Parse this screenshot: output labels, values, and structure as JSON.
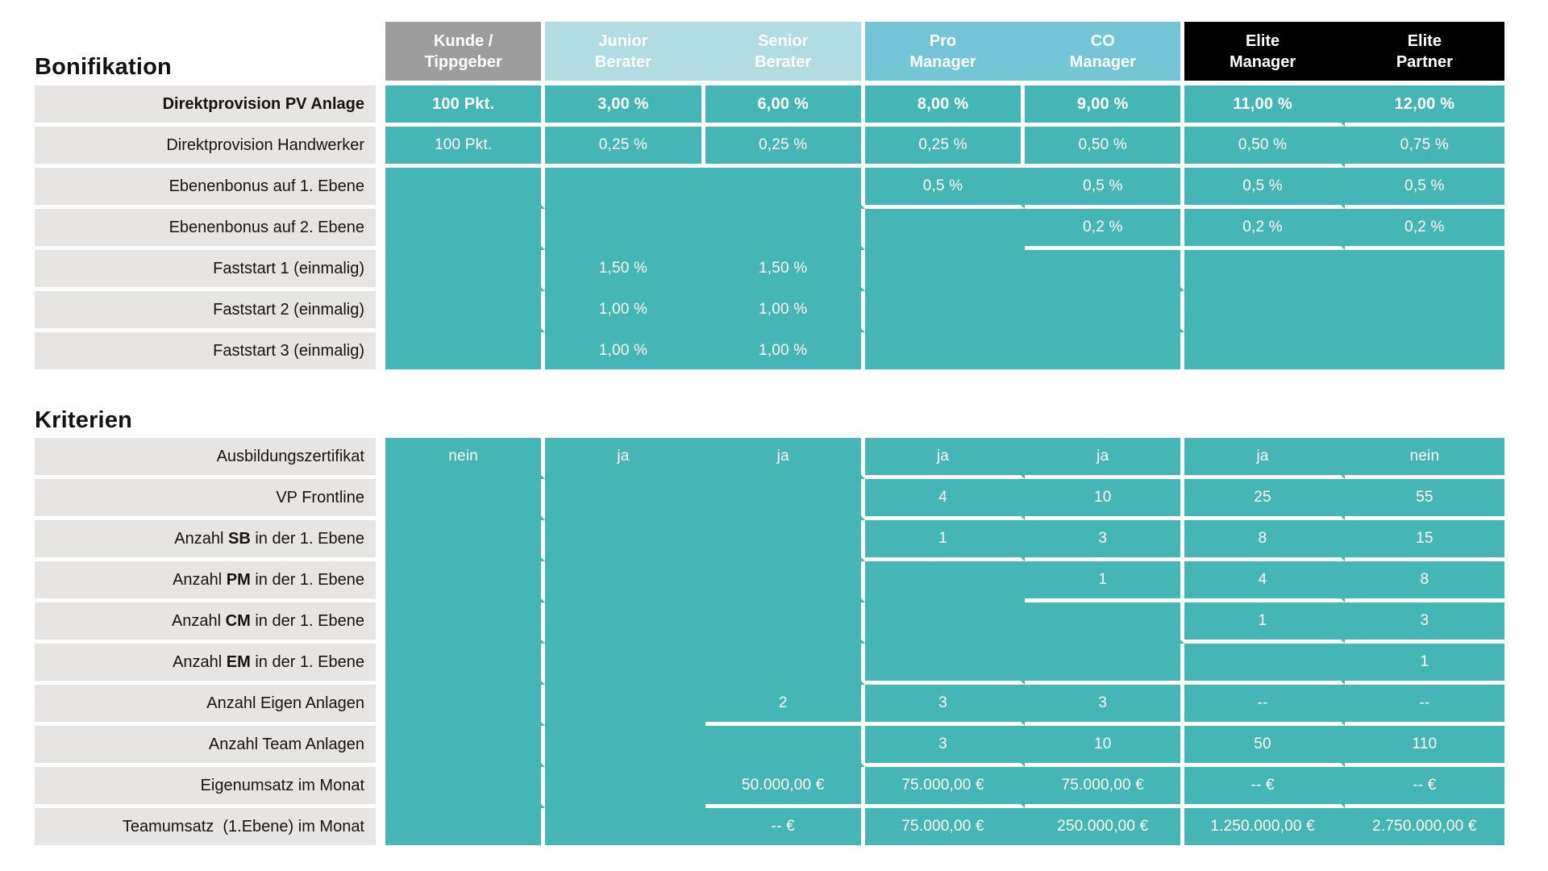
{
  "colors": {
    "teal_body": "#45b5b5",
    "header_gray": "#9d9d9d",
    "header_light_teal": "#b0dce2",
    "header_blue_teal": "#74c6d6",
    "header_black": "#000000",
    "row_label_bg": "#e6e5e3",
    "separator_white": "#ffffff",
    "value_text": "#ffffff",
    "label_text": "#141414"
  },
  "header": {
    "columns": [
      {
        "id": "kunde-tippgeber",
        "group": "gray",
        "line_right": true,
        "title_lines": [
          "Kunde /",
          "Tippgeber"
        ]
      },
      {
        "id": "junior-berater",
        "group": "light",
        "line_right": false,
        "title_lines": [
          "Junior",
          "Berater"
        ]
      },
      {
        "id": "senior-berater",
        "group": "light",
        "line_right": true,
        "title_lines": [
          "Senior",
          "Berater"
        ]
      },
      {
        "id": "pro-manager",
        "group": "medium",
        "line_right": false,
        "title_lines": [
          "Pro",
          "Manager"
        ]
      },
      {
        "id": "co-manager",
        "group": "medium",
        "line_right": true,
        "title_lines": [
          "CO",
          "Manager"
        ]
      },
      {
        "id": "elite-manager",
        "group": "dark",
        "line_right": false,
        "title_lines": [
          "Elite",
          "Manager"
        ]
      },
      {
        "id": "elite-partner",
        "group": "dark",
        "line_right": false,
        "title_lines": [
          "Elite",
          "Partner"
        ]
      }
    ]
  },
  "bonifikation": {
    "heading": "Bonifikation",
    "rows": [
      {
        "label_parts": [
          {
            "t": "Direktprovision PV Anlage",
            "b": true
          }
        ],
        "bold_values": true,
        "cells": [
          "100 Pkt.",
          "3,00 %",
          "6,00 %",
          "8,00 %",
          "9,00 %",
          "11,00 %",
          "12,00 %"
        ],
        "lines_below": [
          1,
          1,
          1,
          1,
          1,
          1,
          1
        ],
        "lines_right": [
          1,
          1,
          1,
          1,
          1,
          0,
          0
        ]
      },
      {
        "label_parts": [
          {
            "t": "Direktprovision Handwerker"
          }
        ],
        "cells": [
          "100 Pkt.",
          "0,25 %",
          "0,25 %",
          "0,25 %",
          "0,50 %",
          "0,50 %",
          "0,75 %"
        ],
        "lines_below": [
          1,
          1,
          1,
          1,
          1,
          1,
          1
        ],
        "lines_right": [
          1,
          1,
          1,
          1,
          1,
          0,
          0
        ]
      },
      {
        "label_parts": [
          {
            "t": "Ebenenbonus auf 1. Ebene"
          }
        ],
        "cells": [
          "",
          "",
          "",
          "0,5 %",
          "0,5 %",
          "0,5 %",
          "0,5 %"
        ],
        "lines_below": [
          0,
          0,
          0,
          1,
          1,
          1,
          1
        ],
        "lines_right": [
          1,
          0,
          1,
          0,
          1,
          0,
          0
        ]
      },
      {
        "label_parts": [
          {
            "t": "Ebenenbonus auf 2. Ebene"
          }
        ],
        "cells": [
          "",
          "",
          "",
          "",
          "0,2 %",
          "0,2 %",
          "0,2 %"
        ],
        "lines_below": [
          0,
          0,
          0,
          0,
          1,
          1,
          1
        ],
        "lines_right": [
          1,
          0,
          1,
          0,
          1,
          0,
          0
        ]
      },
      {
        "label_parts": [
          {
            "t": "Faststart 1 (einmalig)"
          }
        ],
        "cells": [
          "",
          "1,50 %",
          "1,50 %",
          "",
          "",
          "",
          ""
        ],
        "lines_below": [
          0,
          0,
          0,
          0,
          0,
          0,
          0
        ],
        "lines_right": [
          1,
          0,
          1,
          0,
          1,
          0,
          0
        ]
      },
      {
        "label_parts": [
          {
            "t": "Faststart 2 (einmalig)"
          }
        ],
        "cells": [
          "",
          "1,00 %",
          "1,00 %",
          "",
          "",
          "",
          ""
        ],
        "lines_below": [
          0,
          0,
          0,
          0,
          0,
          0,
          0
        ],
        "lines_right": [
          1,
          0,
          1,
          0,
          1,
          0,
          0
        ]
      },
      {
        "label_parts": [
          {
            "t": "Faststart 3 (einmalig)"
          }
        ],
        "cells": [
          "",
          "1,00 %",
          "1,00 %",
          "",
          "",
          "",
          ""
        ],
        "lines_below": [
          0,
          0,
          0,
          0,
          0,
          0,
          0
        ],
        "lines_right": [
          1,
          0,
          1,
          0,
          1,
          0,
          0
        ]
      }
    ]
  },
  "kriterien": {
    "heading": "Kriterien",
    "rows": [
      {
        "label_parts": [
          {
            "t": "Ausbildungszertifikat"
          }
        ],
        "cells": [
          "nein",
          "ja",
          "ja",
          "ja",
          "ja",
          "ja",
          "nein"
        ],
        "lines_below": [
          0,
          0,
          0,
          1,
          1,
          1,
          1
        ],
        "lines_right": [
          1,
          0,
          1,
          0,
          1,
          0,
          0
        ]
      },
      {
        "label_parts": [
          {
            "t": "VP Frontline"
          }
        ],
        "cells": [
          "",
          "",
          "",
          "4",
          "10",
          "25",
          "55"
        ],
        "lines_below": [
          0,
          0,
          0,
          1,
          1,
          1,
          1
        ],
        "lines_right": [
          1,
          0,
          1,
          0,
          1,
          0,
          0
        ]
      },
      {
        "label_parts": [
          {
            "t": "Anzahl "
          },
          {
            "t": "SB",
            "b": true
          },
          {
            "t": " in der 1. Ebene"
          }
        ],
        "cells": [
          "",
          "",
          "",
          "1",
          "3",
          "8",
          "15"
        ],
        "lines_below": [
          0,
          0,
          0,
          1,
          1,
          1,
          1
        ],
        "lines_right": [
          1,
          0,
          1,
          0,
          1,
          0,
          0
        ]
      },
      {
        "label_parts": [
          {
            "t": "Anzahl "
          },
          {
            "t": "PM",
            "b": true
          },
          {
            "t": " in der 1. Ebene"
          }
        ],
        "cells": [
          "",
          "",
          "",
          "",
          "1",
          "4",
          "8"
        ],
        "lines_below": [
          0,
          0,
          0,
          0,
          1,
          1,
          1
        ],
        "lines_right": [
          1,
          0,
          1,
          0,
          1,
          0,
          0
        ]
      },
      {
        "label_parts": [
          {
            "t": "Anzahl "
          },
          {
            "t": "CM",
            "b": true
          },
          {
            "t": " in der 1. Ebene"
          }
        ],
        "cells": [
          "",
          "",
          "",
          "",
          "",
          "1",
          "3"
        ],
        "lines_below": [
          0,
          0,
          0,
          0,
          0,
          1,
          1
        ],
        "lines_right": [
          1,
          0,
          1,
          0,
          1,
          0,
          0
        ]
      },
      {
        "label_parts": [
          {
            "t": "Anzahl "
          },
          {
            "t": "EM",
            "b": true
          },
          {
            "t": " in der 1. Ebene"
          }
        ],
        "cells": [
          "",
          "",
          "",
          "",
          "",
          "",
          "1"
        ],
        "lines_below": [
          0,
          0,
          0,
          1,
          1,
          1,
          1
        ],
        "lines_right": [
          1,
          0,
          1,
          0,
          1,
          0,
          0
        ]
      },
      {
        "label_parts": [
          {
            "t": "Anzahl Eigen Anlagen"
          }
        ],
        "cells": [
          "",
          "",
          "2",
          "3",
          "3",
          "--",
          "--"
        ],
        "lines_below": [
          0,
          0,
          1,
          1,
          1,
          1,
          1
        ],
        "lines_right": [
          1,
          0,
          1,
          0,
          1,
          0,
          0
        ]
      },
      {
        "label_parts": [
          {
            "t": "Anzahl Team Anlagen"
          }
        ],
        "cells": [
          "",
          "",
          "",
          "3",
          "10",
          "50",
          "110"
        ],
        "lines_below": [
          0,
          0,
          0,
          1,
          1,
          1,
          1
        ],
        "lines_right": [
          1,
          0,
          1,
          0,
          1,
          0,
          0
        ]
      },
      {
        "label_parts": [
          {
            "t": "Eigenumsatz im Monat"
          }
        ],
        "cells": [
          "",
          "",
          "50.000,00 €",
          "75.000,00 €",
          "75.000,00 €",
          "-- €",
          "-- €"
        ],
        "lines_below": [
          0,
          0,
          1,
          1,
          1,
          1,
          1
        ],
        "lines_right": [
          1,
          0,
          1,
          0,
          1,
          0,
          0
        ]
      },
      {
        "label_parts": [
          {
            "t": "Teamumsatz  (1.Ebene) im Monat"
          }
        ],
        "cells": [
          "",
          "",
          "-- €",
          "75.000,00 €",
          "250.000,00 €",
          "1.250.000,00 €",
          "2.750.000,00 €"
        ],
        "lines_below": [
          0,
          0,
          0,
          0,
          0,
          0,
          0
        ],
        "lines_right": [
          1,
          0,
          1,
          0,
          1,
          0,
          0
        ]
      }
    ]
  }
}
